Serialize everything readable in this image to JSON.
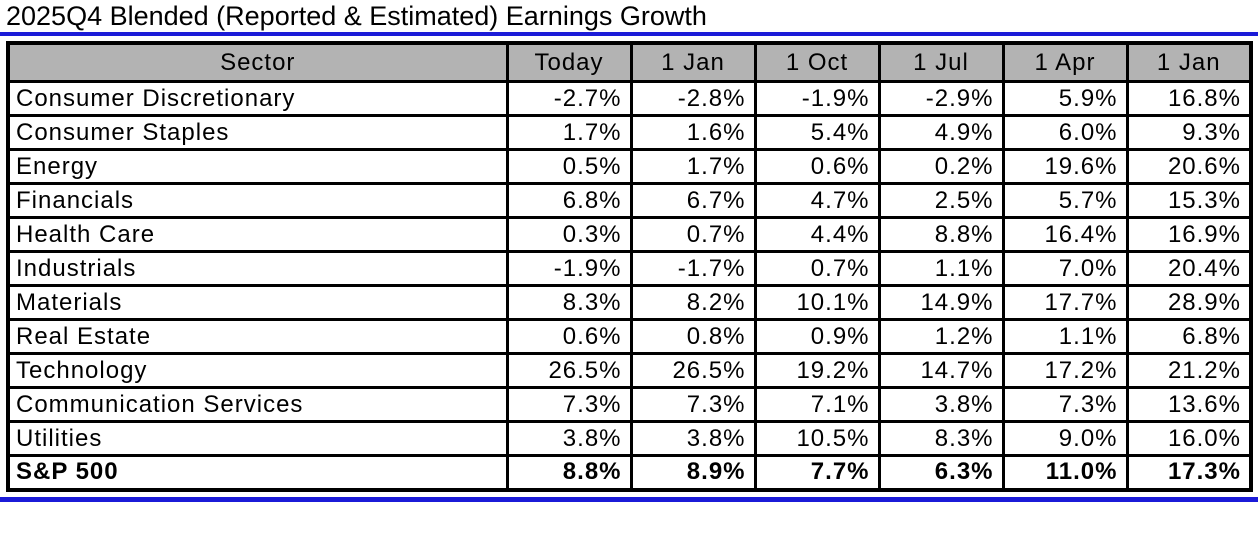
{
  "colors": {
    "accent_blue": "#1b1bd8",
    "header_gray": "#b3b3b3",
    "border_black": "#000000",
    "background": "#ffffff"
  },
  "chart_data": {
    "type": "table",
    "title": "2025Q4 Blended (Reported & Estimated) Earnings Growth",
    "columns": [
      "Sector",
      "Today",
      "1 Jan",
      "1 Oct",
      "1 Jul",
      "1 Apr",
      "1 Jan"
    ],
    "rows": [
      {
        "sector": "Consumer Discretionary",
        "values": [
          "-2.7%",
          "-2.8%",
          "-1.9%",
          "-2.9%",
          "5.9%",
          "16.8%"
        ],
        "bold": false
      },
      {
        "sector": "Consumer Staples",
        "values": [
          "1.7%",
          "1.6%",
          "5.4%",
          "4.9%",
          "6.0%",
          "9.3%"
        ],
        "bold": false
      },
      {
        "sector": "Energy",
        "values": [
          "0.5%",
          "1.7%",
          "0.6%",
          "0.2%",
          "19.6%",
          "20.6%"
        ],
        "bold": false
      },
      {
        "sector": "Financials",
        "values": [
          "6.8%",
          "6.7%",
          "4.7%",
          "2.5%",
          "5.7%",
          "15.3%"
        ],
        "bold": false
      },
      {
        "sector": "Health Care",
        "values": [
          "0.3%",
          "0.7%",
          "4.4%",
          "8.8%",
          "16.4%",
          "16.9%"
        ],
        "bold": false
      },
      {
        "sector": "Industrials",
        "values": [
          "-1.9%",
          "-1.7%",
          "0.7%",
          "1.1%",
          "7.0%",
          "20.4%"
        ],
        "bold": false
      },
      {
        "sector": "Materials",
        "values": [
          "8.3%",
          "8.2%",
          "10.1%",
          "14.9%",
          "17.7%",
          "28.9%"
        ],
        "bold": false
      },
      {
        "sector": "Real Estate",
        "values": [
          "0.6%",
          "0.8%",
          "0.9%",
          "1.2%",
          "1.1%",
          "6.8%"
        ],
        "bold": false
      },
      {
        "sector": "Technology",
        "values": [
          "26.5%",
          "26.5%",
          "19.2%",
          "14.7%",
          "17.2%",
          "21.2%"
        ],
        "bold": false
      },
      {
        "sector": "Communication Services",
        "values": [
          "7.3%",
          "7.3%",
          "7.1%",
          "3.8%",
          "7.3%",
          "13.6%"
        ],
        "bold": false
      },
      {
        "sector": "Utilities",
        "values": [
          "3.8%",
          "3.8%",
          "10.5%",
          "8.3%",
          "9.0%",
          "16.0%"
        ],
        "bold": false
      },
      {
        "sector": "S&P 500",
        "values": [
          "8.8%",
          "8.9%",
          "7.7%",
          "6.3%",
          "11.0%",
          "17.3%"
        ],
        "bold": true
      }
    ]
  }
}
